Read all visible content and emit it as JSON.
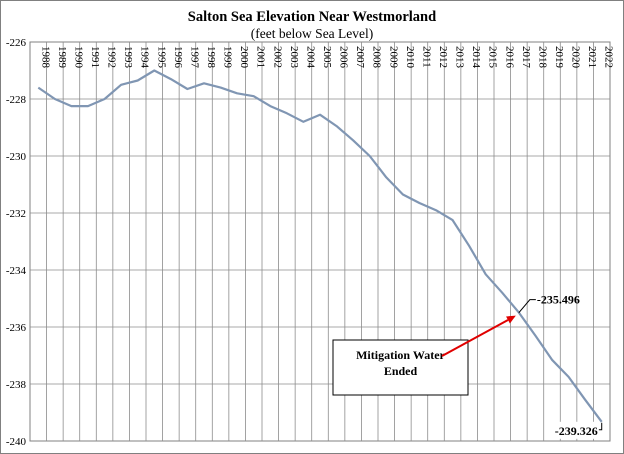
{
  "chart_data": {
    "type": "line",
    "title": "Salton Sea Elevation Near Westmorland",
    "subtitle": "(feet below Sea Level)",
    "xlabel": "",
    "ylabel": "",
    "ylim": [
      -240,
      -226
    ],
    "yticks": [
      "-226",
      "-228",
      "-230",
      "-232",
      "-234",
      "-236",
      "-238",
      "-240"
    ],
    "grid": true,
    "legend": "none",
    "line_color": "#8096b3",
    "categories": [
      "1988",
      "1989",
      "1990",
      "1991",
      "1992",
      "1993",
      "1994",
      "1995",
      "1996",
      "1997",
      "1998",
      "1999",
      "2000",
      "2001",
      "2002",
      "2003",
      "2004",
      "2005",
      "2006",
      "2007",
      "2008",
      "2009",
      "2010",
      "2011",
      "2012",
      "2013",
      "2014",
      "2015",
      "2016",
      "2017",
      "2018",
      "2019",
      "2020",
      "2021",
      "2022"
    ],
    "series": [
      {
        "values": [
          -227.6,
          -228.0,
          -228.25,
          -228.25,
          -228.0,
          -227.5,
          -227.35,
          -227.0,
          -227.3,
          -227.65,
          -227.45,
          -227.6,
          -227.8,
          -227.9,
          -228.25,
          -228.5,
          -228.8,
          -228.55,
          -228.95,
          -229.45,
          -230.0,
          -230.75,
          -231.35,
          -231.65,
          -231.9,
          -232.25,
          -233.15,
          -234.15,
          -234.8,
          -235.496,
          -236.3,
          -237.15,
          -237.75,
          -238.55,
          -239.326
        ]
      }
    ],
    "annotations": [
      {
        "text": "-235.496",
        "category": "2017",
        "value": -235.496
      },
      {
        "text": "-239.326",
        "category": "2022",
        "value": -239.326
      },
      {
        "text_lines": [
          "Mitigation  Water",
          "Ended"
        ],
        "arrow_to_category": "2017",
        "arrow_to_value": -235.496,
        "arrow_color": "#e00000"
      }
    ]
  }
}
